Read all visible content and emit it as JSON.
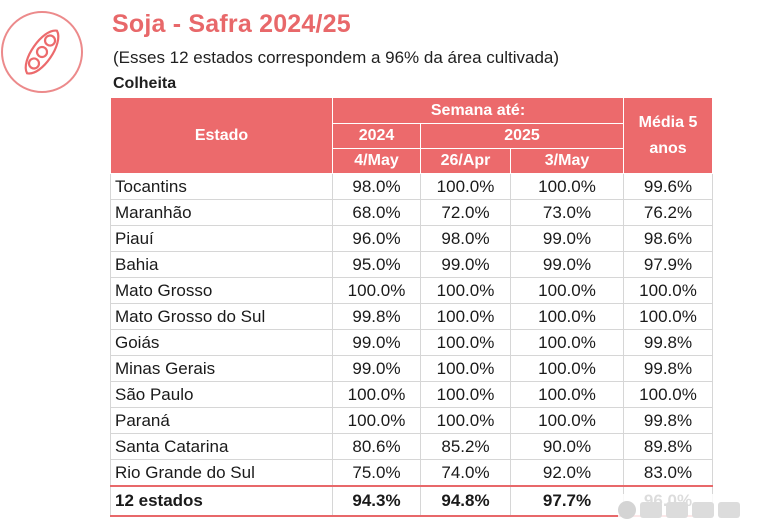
{
  "header": {
    "title": "Soja - Safra 2024/25",
    "subtitle": "(Esses 12 estados correspondem a 96% da área cultivada)",
    "section": "Colheita",
    "logo_icon": "soybean-pod-icon",
    "accent_color": "#e8686a"
  },
  "table": {
    "headers": {
      "estado": "Estado",
      "semana": "Semana até:",
      "year_a": "2024",
      "year_b": "2025",
      "date_1": "4/May",
      "date_2": "26/Apr",
      "date_3": "3/May",
      "media": "Média 5 anos"
    },
    "rows": [
      {
        "estado": "Tocantins",
        "v1": "98.0%",
        "v2": "100.0%",
        "v3": "100.0%",
        "v4": "99.6%"
      },
      {
        "estado": "Maranhão",
        "v1": "68.0%",
        "v2": "72.0%",
        "v3": "73.0%",
        "v4": "76.2%"
      },
      {
        "estado": "Piauí",
        "v1": "96.0%",
        "v2": "98.0%",
        "v3": "99.0%",
        "v4": "98.6%"
      },
      {
        "estado": "Bahia",
        "v1": "95.0%",
        "v2": "99.0%",
        "v3": "99.0%",
        "v4": "97.9%"
      },
      {
        "estado": "Mato Grosso",
        "v1": "100.0%",
        "v2": "100.0%",
        "v3": "100.0%",
        "v4": "100.0%"
      },
      {
        "estado": "Mato Grosso do Sul",
        "v1": "99.8%",
        "v2": "100.0%",
        "v3": "100.0%",
        "v4": "100.0%"
      },
      {
        "estado": "Goiás",
        "v1": "99.0%",
        "v2": "100.0%",
        "v3": "100.0%",
        "v4": "99.8%"
      },
      {
        "estado": "Minas Gerais",
        "v1": "99.0%",
        "v2": "100.0%",
        "v3": "100.0%",
        "v4": "99.8%"
      },
      {
        "estado": "São Paulo",
        "v1": "100.0%",
        "v2": "100.0%",
        "v3": "100.0%",
        "v4": "100.0%"
      },
      {
        "estado": "Paraná",
        "v1": "100.0%",
        "v2": "100.0%",
        "v3": "100.0%",
        "v4": "99.8%"
      },
      {
        "estado": "Santa Catarina",
        "v1": "80.6%",
        "v2": "85.2%",
        "v3": "90.0%",
        "v4": "89.8%"
      },
      {
        "estado": "Rio Grande do Sul",
        "v1": "75.0%",
        "v2": "74.0%",
        "v3": "92.0%",
        "v4": "83.0%"
      }
    ],
    "total": {
      "estado": "12 estados",
      "v1": "94.3%",
      "v2": "94.8%",
      "v3": "97.7%",
      "v4": "96.0%"
    }
  }
}
